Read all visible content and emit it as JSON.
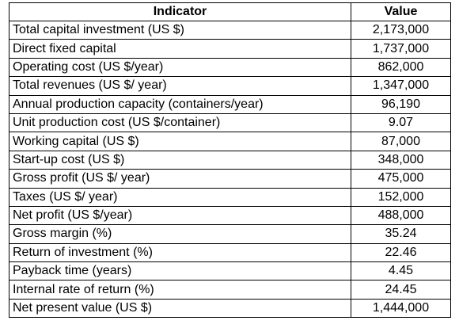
{
  "table": {
    "headers": [
      "Indicator",
      "Value"
    ],
    "rows": [
      [
        "Total capital investment (US $)",
        "2,173,000"
      ],
      [
        "Direct fixed capital",
        "1,737,000"
      ],
      [
        "Operating cost (US $/year)",
        "862,000"
      ],
      [
        "Total revenues (US $/ year)",
        "1,347,000"
      ],
      [
        "Annual production capacity (containers/year)",
        "96,190"
      ],
      [
        "Unit production cost (US $/container)",
        "9.07"
      ],
      [
        "Working capital (US $)",
        "87,000"
      ],
      [
        "Start-up cost (US $)",
        "348,000"
      ],
      [
        "Gross profit (US $/ year)",
        "475,000"
      ],
      [
        "Taxes (US $/ year)",
        "152,000"
      ],
      [
        "Net profit (US $/year)",
        "488,000"
      ],
      [
        "Gross margin (%)",
        "35.24"
      ],
      [
        "Return of investment (%)",
        "22.46"
      ],
      [
        "Payback time (years)",
        "4.45"
      ],
      [
        "Internal rate of return (%)",
        "24.45"
      ],
      [
        "Net present value (US $)",
        "1,444,000"
      ]
    ]
  }
}
